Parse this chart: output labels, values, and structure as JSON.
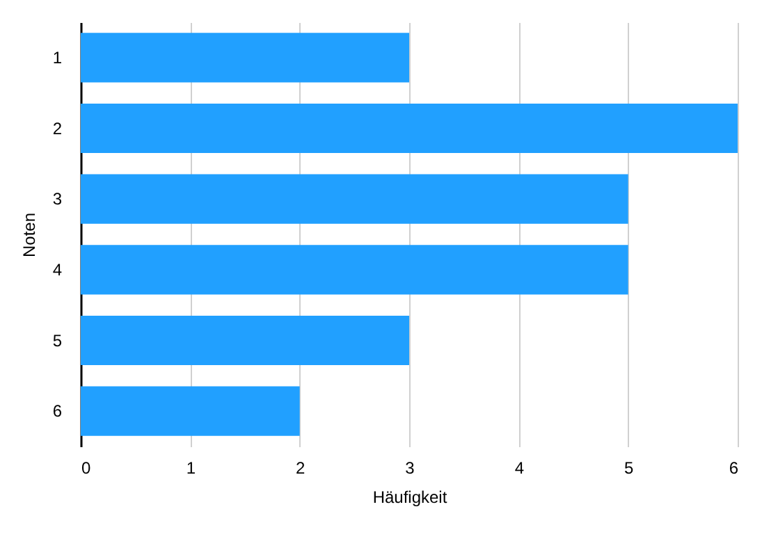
{
  "chart_data": {
    "type": "bar",
    "orientation": "horizontal",
    "xlabel": "Häufigkeit",
    "ylabel": "Noten",
    "categories": [
      "1",
      "2",
      "3",
      "4",
      "5",
      "6"
    ],
    "values": [
      3,
      6,
      5,
      5,
      3,
      2
    ],
    "color": "#21a0ff",
    "xlim": [
      0,
      6
    ],
    "xticks": [
      0,
      1,
      2,
      3,
      4,
      5,
      6
    ],
    "grid": "x"
  }
}
